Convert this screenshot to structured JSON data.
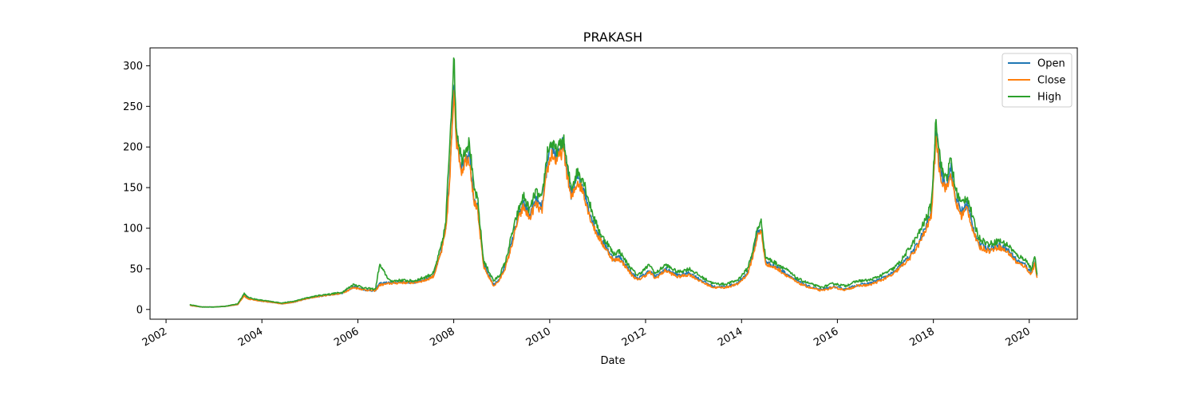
{
  "chart_data": {
    "type": "line",
    "title": "PRAKASH",
    "xlabel": "Date",
    "ylabel": "",
    "xlim": [
      "2001-09-01",
      "2021-01-01"
    ],
    "ylim": [
      -12,
      322
    ],
    "x_ticks": [
      "2002",
      "2004",
      "2006",
      "2008",
      "2010",
      "2012",
      "2014",
      "2016",
      "2018",
      "2020"
    ],
    "y_ticks": [
      0,
      50,
      100,
      150,
      200,
      250,
      300
    ],
    "grid": false,
    "legend_position": "top-right",
    "x": [
      "2002-07-01",
      "2002-10-01",
      "2003-01-01",
      "2003-04-01",
      "2003-07-01",
      "2003-08-20",
      "2003-09-15",
      "2003-12-01",
      "2004-03-01",
      "2004-06-01",
      "2004-09-01",
      "2004-12-01",
      "2005-03-01",
      "2005-06-01",
      "2005-09-01",
      "2005-12-01",
      "2006-03-01",
      "2006-05-15",
      "2006-06-15",
      "2006-09-01",
      "2006-12-01",
      "2007-03-01",
      "2007-06-01",
      "2007-08-01",
      "2007-10-01",
      "2007-11-01",
      "2007-12-01",
      "2007-12-25",
      "2008-01-05",
      "2008-01-20",
      "2008-02-05",
      "2008-03-01",
      "2008-04-01",
      "2008-05-01",
      "2008-06-01",
      "2008-07-01",
      "2008-08-15",
      "2008-10-01",
      "2008-11-01",
      "2008-12-15",
      "2009-02-01",
      "2009-03-15",
      "2009-05-01",
      "2009-06-15",
      "2009-08-01",
      "2009-09-15",
      "2009-11-01",
      "2009-12-15",
      "2010-01-15",
      "2010-02-15",
      "2010-03-15",
      "2010-04-15",
      "2010-05-15",
      "2010-06-15",
      "2010-08-01",
      "2010-09-15",
      "2010-11-01",
      "2010-12-15",
      "2011-02-01",
      "2011-03-15",
      "2011-05-01",
      "2011-06-15",
      "2011-08-01",
      "2011-09-15",
      "2011-11-01",
      "2011-12-15",
      "2012-02-01",
      "2012-03-15",
      "2012-06-01",
      "2012-09-01",
      "2012-12-01",
      "2013-03-01",
      "2013-06-01",
      "2013-09-01",
      "2013-12-01",
      "2014-02-15",
      "2014-04-01",
      "2014-05-01",
      "2014-06-01",
      "2014-07-01",
      "2014-08-15",
      "2014-10-01",
      "2014-12-01",
      "2015-03-01",
      "2015-06-01",
      "2015-09-01",
      "2015-12-01",
      "2016-03-01",
      "2016-06-01",
      "2016-09-01",
      "2016-12-01",
      "2017-03-01",
      "2017-05-01",
      "2017-07-01",
      "2017-09-01",
      "2017-11-01",
      "2017-12-15",
      "2018-01-05",
      "2018-01-20",
      "2018-02-15",
      "2018-03-15",
      "2018-04-15",
      "2018-05-15",
      "2018-06-15",
      "2018-08-01",
      "2018-09-15",
      "2018-11-01",
      "2018-12-15",
      "2019-03-01",
      "2019-05-15",
      "2019-08-01",
      "2019-10-01",
      "2019-12-01",
      "2020-01-15",
      "2020-02-15",
      "2020-03-01"
    ],
    "series": [
      {
        "name": "Open",
        "color": "#1f77b4",
        "values": [
          5,
          3,
          3,
          4,
          6,
          18,
          14,
          11,
          9,
          7,
          9,
          13,
          16,
          18,
          20,
          28,
          24,
          23,
          32,
          33,
          34,
          33,
          37,
          42,
          75,
          100,
          160,
          250,
          280,
          215,
          200,
          175,
          190,
          190,
          140,
          125,
          55,
          40,
          30,
          38,
          55,
          80,
          112,
          130,
          115,
          135,
          125,
          180,
          200,
          190,
          195,
          205,
          170,
          140,
          165,
          150,
          120,
          100,
          85,
          75,
          62,
          65,
          55,
          45,
          38,
          42,
          48,
          40,
          50,
          42,
          45,
          36,
          28,
          28,
          32,
          45,
          70,
          95,
          100,
          60,
          55,
          52,
          45,
          35,
          28,
          24,
          28,
          25,
          30,
          32,
          38,
          45,
          55,
          65,
          80,
          100,
          120,
          170,
          225,
          180,
          160,
          155,
          175,
          140,
          120,
          130,
          100,
          80,
          75,
          80,
          72,
          60,
          55,
          45,
          60,
          40
        ]
      },
      {
        "name": "Close",
        "color": "#ff7f0e",
        "values": [
          5,
          3,
          3,
          4,
          6,
          17,
          13,
          11,
          9,
          7,
          9,
          13,
          16,
          18,
          20,
          27,
          24,
          23,
          30,
          32,
          33,
          33,
          36,
          41,
          72,
          96,
          155,
          240,
          275,
          210,
          195,
          170,
          185,
          185,
          135,
          120,
          53,
          38,
          29,
          36,
          53,
          77,
          108,
          126,
          112,
          130,
          120,
          172,
          192,
          183,
          188,
          197,
          164,
          135,
          158,
          144,
          115,
          96,
          82,
          72,
          60,
          62,
          53,
          43,
          36,
          40,
          46,
          38,
          48,
          40,
          43,
          34,
          27,
          27,
          31,
          43,
          67,
          90,
          96,
          57,
          53,
          50,
          43,
          33,
          27,
          23,
          27,
          24,
          29,
          30,
          36,
          43,
          53,
          62,
          77,
          96,
          115,
          163,
          215,
          173,
          154,
          149,
          168,
          134,
          115,
          125,
          96,
          77,
          72,
          77,
          69,
          57,
          53,
          43,
          57,
          38
        ]
      },
      {
        "name": "High",
        "color": "#2ca02c",
        "values": [
          6,
          3,
          3,
          4,
          7,
          20,
          15,
          12,
          10,
          8,
          10,
          14,
          17,
          19,
          21,
          31,
          26,
          25,
          55,
          35,
          36,
          35,
          40,
          45,
          80,
          106,
          205,
          285,
          305,
          225,
          210,
          185,
          200,
          205,
          150,
          135,
          60,
          45,
          35,
          42,
          60,
          90,
          118,
          140,
          122,
          145,
          135,
          195,
          205,
          195,
          200,
          210,
          175,
          150,
          170,
          160,
          130,
          108,
          90,
          82,
          68,
          72,
          60,
          50,
          42,
          48,
          55,
          44,
          55,
          46,
          50,
          40,
          32,
          31,
          36,
          50,
          75,
          100,
          108,
          65,
          60,
          56,
          50,
          38,
          32,
          27,
          32,
          29,
          35,
          36,
          42,
          50,
          60,
          75,
          90,
          110,
          128,
          180,
          238,
          195,
          165,
          165,
          185,
          150,
          130,
          140,
          110,
          88,
          80,
          85,
          78,
          66,
          62,
          50,
          65,
          42
        ]
      }
    ]
  }
}
